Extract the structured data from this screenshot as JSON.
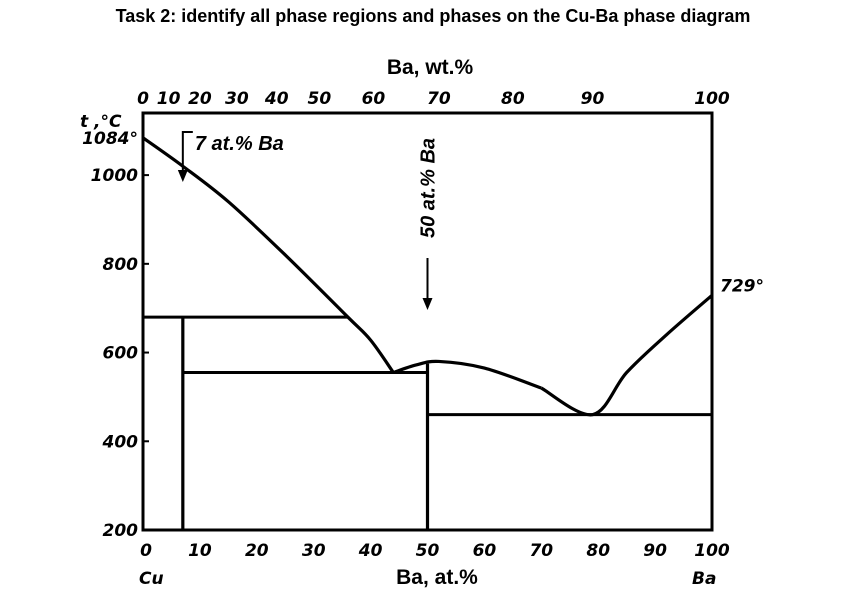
{
  "title": "Task 2: identify all phase regions and phases on the Cu-Ba phase diagram",
  "top_axis": {
    "label": "Ba, wt.%",
    "ticks": [
      "0",
      "10",
      "20",
      "30",
      "40",
      "50",
      "60",
      "70",
      "80",
      "90",
      "100"
    ]
  },
  "bottom_axis": {
    "label": "Ba, at.%",
    "ticks": [
      "0",
      "10",
      "20",
      "30",
      "40",
      "50",
      "60",
      "70",
      "80",
      "90",
      "100"
    ],
    "left_element": "Cu",
    "right_element": "Ba"
  },
  "y_axis": {
    "label": "t ,°C",
    "ticks": [
      "200",
      "400",
      "600",
      "800",
      "1000"
    ]
  },
  "annotations": {
    "cu_melting": "1084°",
    "ba_melting": "729°",
    "compound_7": "7 at.% Ba",
    "compound_50": "50 at.% Ba"
  },
  "chart_data": {
    "type": "phase-diagram",
    "x_unit": "at.% Ba",
    "y_unit": "°C",
    "xlim": [
      0,
      100
    ],
    "ylim": [
      200,
      1140
    ],
    "liquidus": [
      {
        "x": 0,
        "y": 1084
      },
      {
        "x": 7,
        "y": 1020
      },
      {
        "x": 15,
        "y": 940
      },
      {
        "x": 25,
        "y": 820
      },
      {
        "x": 36,
        "y": 680
      },
      {
        "x": 40,
        "y": 628
      },
      {
        "x": 44,
        "y": 555
      },
      {
        "x": 48,
        "y": 572
      },
      {
        "x": 52,
        "y": 580
      },
      {
        "x": 60,
        "y": 565
      },
      {
        "x": 70,
        "y": 520
      },
      {
        "x": 79,
        "y": 460
      },
      {
        "x": 85,
        "y": 555
      },
      {
        "x": 92,
        "y": 640
      },
      {
        "x": 100,
        "y": 729
      }
    ],
    "horizontal_lines": [
      {
        "x1": 0,
        "x2": 36,
        "y": 680
      },
      {
        "x1": 7,
        "x2": 50,
        "y": 555
      },
      {
        "x1": 50,
        "x2": 100,
        "y": 460
      }
    ],
    "vertical_lines": [
      {
        "x": 7,
        "y1": 200,
        "y2": 680
      },
      {
        "x": 50,
        "y1": 200,
        "y2": 575
      }
    ],
    "arrows": [
      {
        "x": 7,
        "label_key": "compound_7"
      },
      {
        "x": 50,
        "label_key": "compound_50"
      }
    ]
  }
}
